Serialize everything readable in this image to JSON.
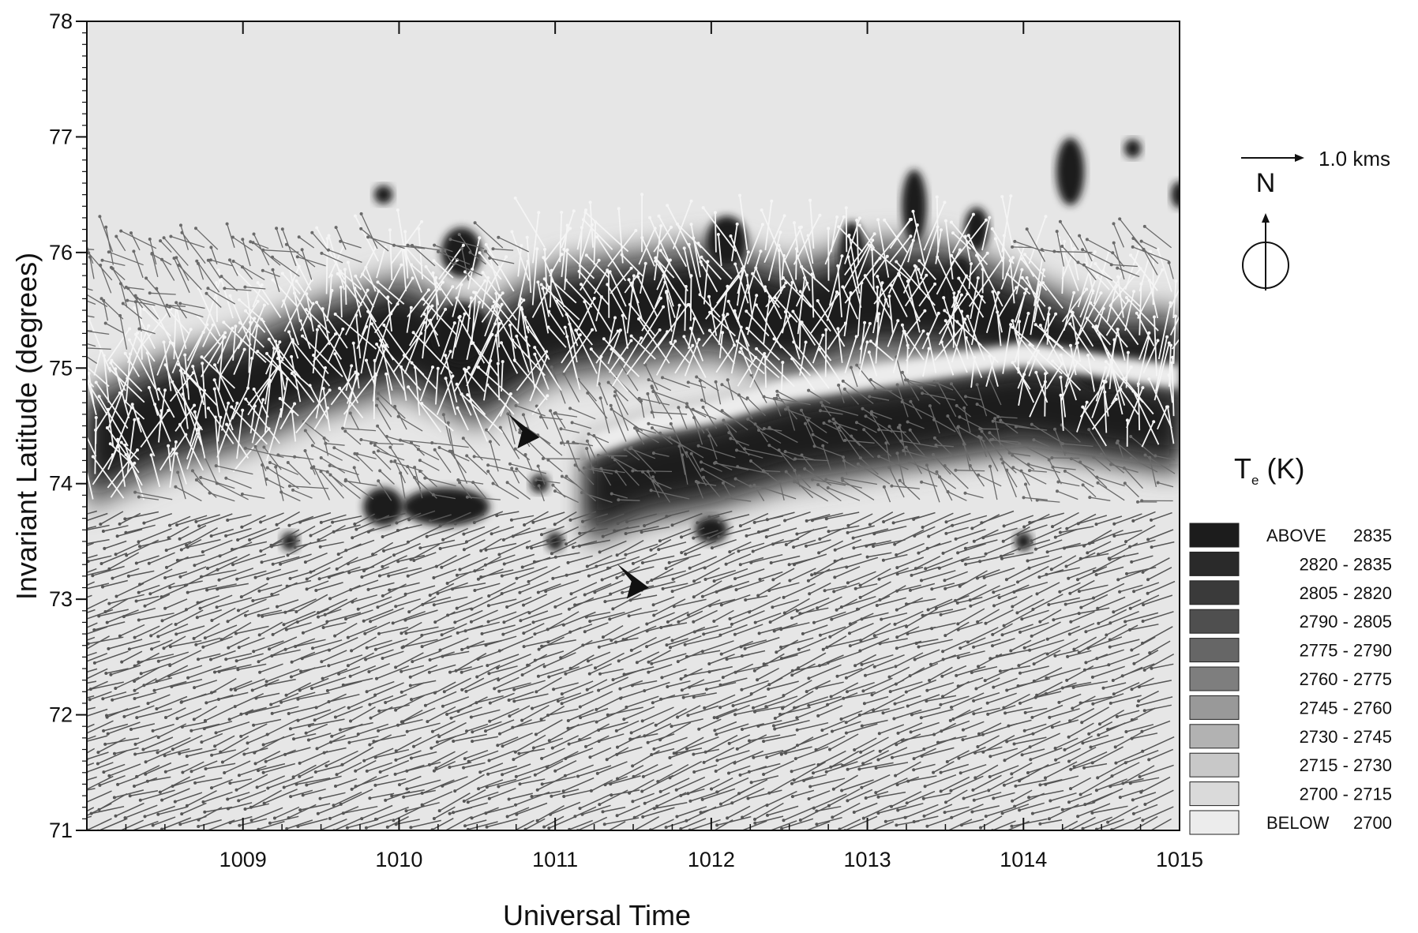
{
  "chart_data": {
    "type": "heatmap",
    "title": "",
    "xlabel": "Universal Time",
    "ylabel": "Invariant Latitude (degrees)",
    "xlim": [
      1008,
      1015
    ],
    "ylim": [
      71,
      78
    ],
    "x_ticks": [
      "1009",
      "1010",
      "1011",
      "1012",
      "1013",
      "1014",
      "1015"
    ],
    "y_ticks": [
      "71",
      "72",
      "73",
      "74",
      "75",
      "76",
      "77",
      "78"
    ],
    "grid": false,
    "legend": {
      "position": "right",
      "title_main": "T",
      "title_sub": "e",
      "title_unit": "(K)",
      "bins": [
        {
          "prefix": "ABOVE",
          "range": "2835",
          "color": "#1c1c1c"
        },
        {
          "prefix": "",
          "range": "2820 - 2835",
          "color": "#2a2a2a"
        },
        {
          "prefix": "",
          "range": "2805 - 2820",
          "color": "#3a3a3a"
        },
        {
          "prefix": "",
          "range": "2790 - 2805",
          "color": "#4f4f4f"
        },
        {
          "prefix": "",
          "range": "2775 - 2790",
          "color": "#666666"
        },
        {
          "prefix": "",
          "range": "2760 - 2775",
          "color": "#7e7e7e"
        },
        {
          "prefix": "",
          "range": "2745 - 2760",
          "color": "#999999"
        },
        {
          "prefix": "",
          "range": "2730 - 2745",
          "color": "#b2b2b2"
        },
        {
          "prefix": "",
          "range": "2715 - 2730",
          "color": "#c8c8c8"
        },
        {
          "prefix": "",
          "range": "2700 - 2715",
          "color": "#dadada"
        },
        {
          "prefix": "BELOW",
          "range": "2700",
          "color": "#ececec"
        }
      ]
    },
    "reference_vector": {
      "label": "1.0  kms"
    },
    "north_indicator": {
      "label": "N"
    },
    "hot_band": [
      {
        "x": 1008.0,
        "y": 74.3
      },
      {
        "x": 1008.5,
        "y": 74.6
      },
      {
        "x": 1009.0,
        "y": 74.8
      },
      {
        "x": 1009.5,
        "y": 75.1
      },
      {
        "x": 1010.0,
        "y": 75.3
      },
      {
        "x": 1010.5,
        "y": 75.0
      },
      {
        "x": 1011.0,
        "y": 75.4
      },
      {
        "x": 1011.5,
        "y": 75.5
      },
      {
        "x": 1012.0,
        "y": 75.6
      },
      {
        "x": 1012.5,
        "y": 75.4
      },
      {
        "x": 1013.0,
        "y": 75.6
      },
      {
        "x": 1013.5,
        "y": 75.6
      },
      {
        "x": 1014.0,
        "y": 75.3
      },
      {
        "x": 1014.5,
        "y": 75.0
      },
      {
        "x": 1015.0,
        "y": 75.0
      }
    ],
    "lower_band": [
      {
        "x": 1011.2,
        "y": 73.9
      },
      {
        "x": 1011.6,
        "y": 74.1
      },
      {
        "x": 1012.0,
        "y": 74.2
      },
      {
        "x": 1012.5,
        "y": 74.4
      },
      {
        "x": 1013.0,
        "y": 74.5
      },
      {
        "x": 1013.5,
        "y": 74.6
      },
      {
        "x": 1014.0,
        "y": 74.7
      },
      {
        "x": 1014.5,
        "y": 74.6
      },
      {
        "x": 1015.0,
        "y": 74.5
      }
    ],
    "hot_spots": [
      {
        "x": 1010.3,
        "y": 73.8,
        "w": 0.5,
        "h": 0.25
      },
      {
        "x": 1009.9,
        "y": 73.8,
        "w": 0.2,
        "h": 0.25
      },
      {
        "x": 1010.4,
        "y": 76.0,
        "w": 0.2,
        "h": 0.35
      },
      {
        "x": 1010.4,
        "y": 75.3,
        "w": 0.3,
        "h": 0.45
      },
      {
        "x": 1012.1,
        "y": 76.1,
        "w": 0.2,
        "h": 0.35
      },
      {
        "x": 1012.9,
        "y": 76.0,
        "w": 0.1,
        "h": 0.45
      },
      {
        "x": 1013.3,
        "y": 76.4,
        "w": 0.1,
        "h": 0.55
      },
      {
        "x": 1013.6,
        "y": 75.7,
        "w": 0.12,
        "h": 0.45
      },
      {
        "x": 1014.3,
        "y": 76.7,
        "w": 0.12,
        "h": 0.5
      },
      {
        "x": 1014.7,
        "y": 76.9,
        "w": 0.05,
        "h": 0.08
      },
      {
        "x": 1015.0,
        "y": 76.5,
        "w": 0.05,
        "h": 0.15
      },
      {
        "x": 1012.0,
        "y": 73.6,
        "w": 0.15,
        "h": 0.15
      },
      {
        "x": 1014.0,
        "y": 73.5,
        "w": 0.05,
        "h": 0.08
      },
      {
        "x": 1009.3,
        "y": 73.5,
        "w": 0.05,
        "h": 0.08
      },
      {
        "x": 1010.9,
        "y": 74.0,
        "w": 0.06,
        "h": 0.08
      },
      {
        "x": 1011.0,
        "y": 73.5,
        "w": 0.05,
        "h": 0.08
      },
      {
        "x": 1014.5,
        "y": 75.0,
        "w": 0.3,
        "h": 0.3
      },
      {
        "x": 1013.7,
        "y": 76.2,
        "w": 0.1,
        "h": 0.3
      },
      {
        "x": 1009.9,
        "y": 76.5,
        "w": 0.06,
        "h": 0.08
      }
    ],
    "annotations": [
      {
        "type": "arrowhead",
        "x": 1010.9,
        "y": 74.4
      },
      {
        "type": "arrowhead",
        "x": 1011.6,
        "y": 73.1
      }
    ]
  }
}
